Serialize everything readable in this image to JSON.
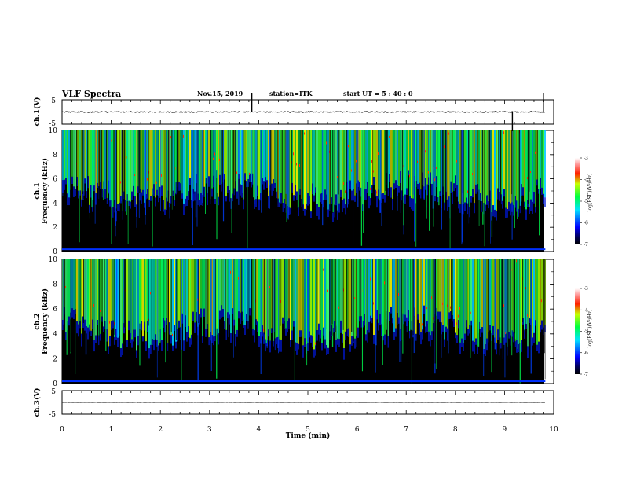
{
  "header": {
    "title": "VLF Spectra",
    "date": "Nov.15, 2019",
    "station": "station=ITK",
    "start": "start  UT  =   5 : 40 : 0"
  },
  "colors": {
    "background": "#ffffff",
    "spectrogram_floor": "#000000",
    "waveform": "#000000"
  },
  "chart_data": [
    {
      "type": "line",
      "panel": "ch1-waveform",
      "ylabel": "ch.1(V)",
      "ylim": [
        -5,
        5
      ],
      "y_ticklabels": [
        "5",
        "-5"
      ],
      "baseline": 0,
      "spikes": [
        {
          "x": 3.86,
          "y": 5
        },
        {
          "x": 9.79,
          "y": 5
        },
        {
          "x": 9.16,
          "y": -5
        }
      ]
    },
    {
      "type": "heatmap",
      "panel": "ch1-spectrogram",
      "ylabel": "ch.1\nFrequency (kHz)",
      "ylabel_top": "ch.1",
      "ylabel_bottom": "Frequency (kHz)",
      "ylim": [
        0,
        10
      ],
      "y_ticklabels": [
        "0",
        "2",
        "4",
        "6",
        "8",
        "10"
      ],
      "colorbar": {
        "label": "log(PSD)(V²/Hz)",
        "range": [
          -7,
          -3
        ],
        "ticklabels": [
          "-3",
          "-4",
          "-5",
          "-6",
          "-7"
        ]
      },
      "mean_cutoff_khz": 5
    },
    {
      "type": "heatmap",
      "panel": "ch2-spectrogram",
      "ylabel_top": "ch.2",
      "ylabel_bottom": "Frequency (kHz)",
      "ylim": [
        0,
        10
      ],
      "y_ticklabels": [
        "0",
        "2",
        "4",
        "6",
        "8",
        "10"
      ],
      "colorbar": {
        "label": "log(PSD)(V²/Hz)",
        "range": [
          -7,
          -3
        ],
        "ticklabels": [
          "-3",
          "-4",
          "-5",
          "-6",
          "-7"
        ]
      },
      "mean_cutoff_khz": 4.5
    },
    {
      "type": "line",
      "panel": "ch3-waveform",
      "ylabel": "ch.3(V)",
      "ylim": [
        -5,
        5
      ],
      "y_ticklabels": [
        "5",
        "-5"
      ],
      "baseline": 0
    }
  ],
  "xaxis": {
    "label": "Time (min)",
    "range": [
      0,
      10
    ],
    "ticklabels": [
      "0",
      "1",
      "2",
      "3",
      "4",
      "5",
      "6",
      "7",
      "8",
      "9",
      "10"
    ],
    "data_end": 9.83
  }
}
